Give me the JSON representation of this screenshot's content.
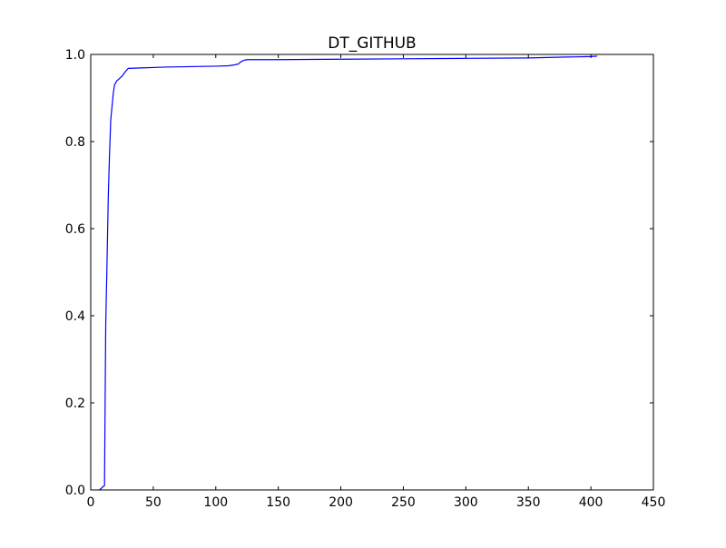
{
  "chart_data": {
    "type": "line",
    "title": "DT_GITHUB",
    "xlabel": "",
    "ylabel": "",
    "xlim": [
      0,
      450
    ],
    "ylim": [
      0.0,
      1.0
    ],
    "xticks": [
      0,
      50,
      100,
      150,
      200,
      250,
      300,
      350,
      400,
      450
    ],
    "xtick_labels": [
      "0",
      "50",
      "100",
      "150",
      "200",
      "250",
      "300",
      "350",
      "400",
      "450"
    ],
    "yticks": [
      0.0,
      0.2,
      0.4,
      0.6,
      0.8,
      1.0
    ],
    "ytick_labels": [
      "0.0",
      "0.2",
      "0.4",
      "0.6",
      "0.8",
      "1.0"
    ],
    "grid": false,
    "series": [
      {
        "color": "#0000ff",
        "x": [
          7,
          9,
          10,
          11,
          11.5,
          12,
          13,
          14,
          15,
          16,
          17,
          18,
          19,
          20,
          21,
          22,
          23,
          25,
          27,
          29,
          30,
          40,
          60,
          80,
          100,
          110,
          115,
          118,
          120,
          122,
          125,
          150,
          200,
          250,
          300,
          350,
          380,
          400,
          405
        ],
        "y": [
          0.0,
          0.005,
          0.008,
          0.01,
          0.2,
          0.38,
          0.52,
          0.67,
          0.77,
          0.85,
          0.88,
          0.91,
          0.93,
          0.935,
          0.94,
          0.942,
          0.945,
          0.95,
          0.958,
          0.965,
          0.968,
          0.969,
          0.971,
          0.972,
          0.973,
          0.974,
          0.976,
          0.978,
          0.983,
          0.986,
          0.988,
          0.988,
          0.989,
          0.99,
          0.991,
          0.992,
          0.994,
          0.995,
          0.996
        ]
      }
    ]
  }
}
